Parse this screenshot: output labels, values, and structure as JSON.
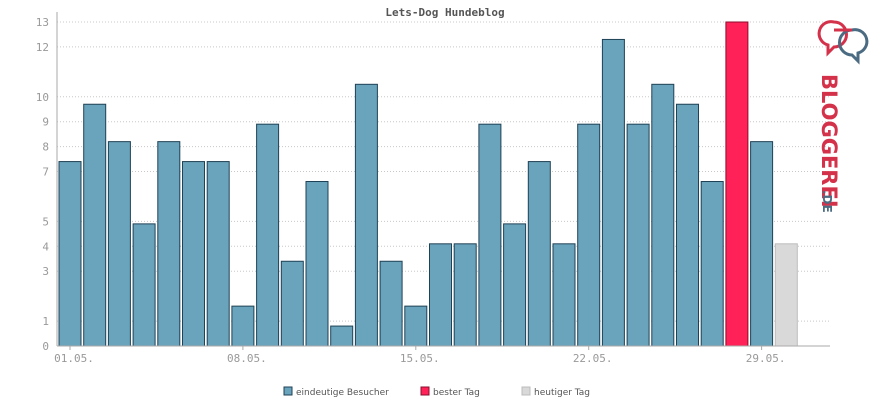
{
  "chart_data": {
    "type": "bar",
    "title": "Lets-Dog Hundeblog",
    "ylim": [
      0,
      13
    ],
    "yticks": [
      0,
      1,
      3,
      4,
      5,
      7,
      8,
      9,
      10,
      12,
      13
    ],
    "grid": true,
    "legend_position": "bottom",
    "categories": [
      "01.05.",
      "02.05.",
      "03.05.",
      "04.05.",
      "05.05.",
      "06.05.",
      "07.05.",
      "08.05.",
      "09.05.",
      "10.05.",
      "11.05.",
      "12.05.",
      "13.05.",
      "14.05.",
      "15.05.",
      "16.05.",
      "17.05.",
      "18.05.",
      "19.05.",
      "20.05.",
      "21.05.",
      "22.05.",
      "23.05.",
      "24.05.",
      "25.05.",
      "26.05.",
      "27.05.",
      "28.05.",
      "29.05.",
      "30.05."
    ],
    "xtick_labels": [
      "01.05.",
      "08.05.",
      "15.05.",
      "22.05.",
      "29.05."
    ],
    "values": [
      7.4,
      9.7,
      8.2,
      4.9,
      8.2,
      7.4,
      7.4,
      1.6,
      8.9,
      3.4,
      6.6,
      0.8,
      10.5,
      3.4,
      1.6,
      4.1,
      4.1,
      8.9,
      4.9,
      7.4,
      4.1,
      8.9,
      12.3,
      8.9,
      10.5,
      9.7,
      6.6,
      13.0,
      8.2,
      4.1
    ],
    "bar_kinds": [
      "unique",
      "unique",
      "unique",
      "unique",
      "unique",
      "unique",
      "unique",
      "unique",
      "unique",
      "unique",
      "unique",
      "unique",
      "unique",
      "unique",
      "unique",
      "unique",
      "unique",
      "unique",
      "unique",
      "unique",
      "unique",
      "unique",
      "unique",
      "unique",
      "unique",
      "unique",
      "unique",
      "best",
      "unique",
      "today"
    ],
    "legend": [
      {
        "key": "unique",
        "label": "eindeutige Besucher",
        "color": "#6aa3bc"
      },
      {
        "key": "best",
        "label": "bester Tag",
        "color": "#ff2157"
      },
      {
        "key": "today",
        "label": "heutiger Tag",
        "color": "#d9d9d9"
      }
    ]
  },
  "brand": {
    "text": "BLOGGEREI",
    "suffix": ".DE",
    "logo_icon": "bloggerei-logo-icon",
    "colors": {
      "primary": "#d4324a",
      "secondary": "#4b6b82"
    }
  }
}
